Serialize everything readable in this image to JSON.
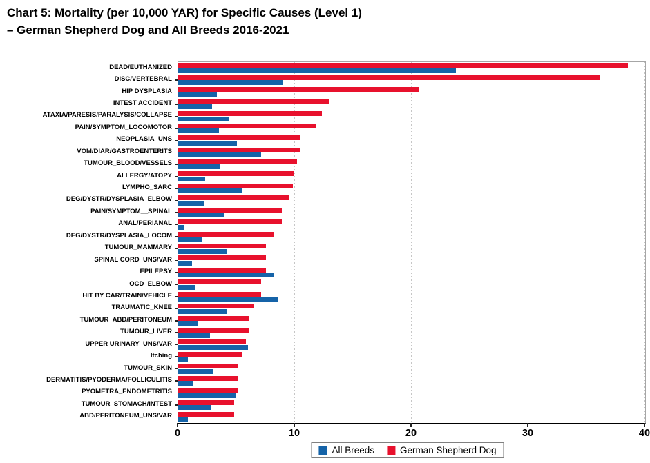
{
  "header": {
    "title_line1": "Chart 5: Mortality (per 10,000 YAR) for Specific Causes (Level 1)",
    "title_line2": "– German Shepherd Dog and All Breeds 2016-2021"
  },
  "chart_data": {
    "type": "bar",
    "orientation": "horizontal",
    "title": "Chart 5: Mortality (per 10,000 YAR) for Specific Causes (Level 1) – German Shepherd Dog and All Breeds 2016-2021",
    "xlabel": "",
    "ylabel": "",
    "xlim": [
      0,
      40
    ],
    "x_ticks": [
      0,
      10,
      20,
      30,
      40
    ],
    "grid": "vertical-dashed-at-10-20-30-40",
    "legend_position": "bottom-center",
    "categories": [
      "DEAD/EUTHANIZED",
      "DISC/VERTEBRAL",
      "HIP DYSPLASIA",
      "INTEST ACCIDENT",
      "ATAXIA/PARESIS/PARALYSIS/COLLAPSE",
      "PAIN/SYMPTOM_LOCOMOTOR",
      "NEOPLASIA_UNS",
      "VOM/DIAR/GASTROENTERITS",
      "TUMOUR_BLOOD/VESSELS",
      "ALLERGY/ATOPY",
      "LYMPHO_SARC",
      "DEG/DYSTR/DYSPLASIA_ELBOW",
      "PAIN/SYMPTOM__SPINAL",
      "ANAL/PERIANAL",
      "DEG/DYSTR/DYSPLASIA_LOCOM",
      "TUMOUR_MAMMARY",
      "SPINAL CORD_UNS/VAR",
      "EPILEPSY",
      "OCD_ELBOW",
      "HIT BY CAR/TRAIN/VEHICLE",
      "TRAUMATIC_KNEE",
      "TUMOUR_ABD/PERITONEUM",
      "TUMOUR_LIVER",
      "UPPER URINARY_UNS/VAR",
      "Itching",
      "TUMOUR_SKIN",
      "DERMATITIS/PYODERMA/FOLLICULITIS",
      "PYOMETRA_ENDOMETRITIS",
      "TUMOUR_STOMACH/INTEST",
      "ABD/PERITONEUM_UNS/VAR"
    ],
    "series": [
      {
        "name": "All Breeds",
        "color": "#1563a8",
        "values": [
          23.8,
          9.0,
          3.3,
          2.9,
          4.4,
          3.5,
          5.0,
          7.1,
          3.6,
          2.3,
          5.5,
          2.2,
          3.9,
          0.5,
          2.0,
          4.2,
          1.2,
          8.2,
          1.4,
          8.6,
          4.2,
          1.7,
          2.7,
          6.0,
          0.8,
          3.0,
          1.3,
          4.9,
          2.8,
          0.8
        ]
      },
      {
        "name": "German Shepherd Dog",
        "color": "#e8112d",
        "values": [
          38.5,
          36.1,
          20.6,
          12.9,
          12.3,
          11.8,
          10.5,
          10.5,
          10.2,
          9.9,
          9.8,
          9.5,
          8.9,
          8.9,
          8.2,
          7.5,
          7.5,
          7.5,
          7.1,
          7.1,
          6.5,
          6.1,
          6.1,
          5.8,
          5.5,
          5.1,
          5.1,
          5.1,
          4.8,
          4.8
        ]
      }
    ],
    "bar_draw_order": "German Shepherd Dog bar on top of each pair, All Breeds bar below"
  },
  "colors": {
    "grid": "#c6c6c6",
    "frame": "#a6a6a6",
    "axis": "#000000",
    "background": "#ffffff"
  }
}
